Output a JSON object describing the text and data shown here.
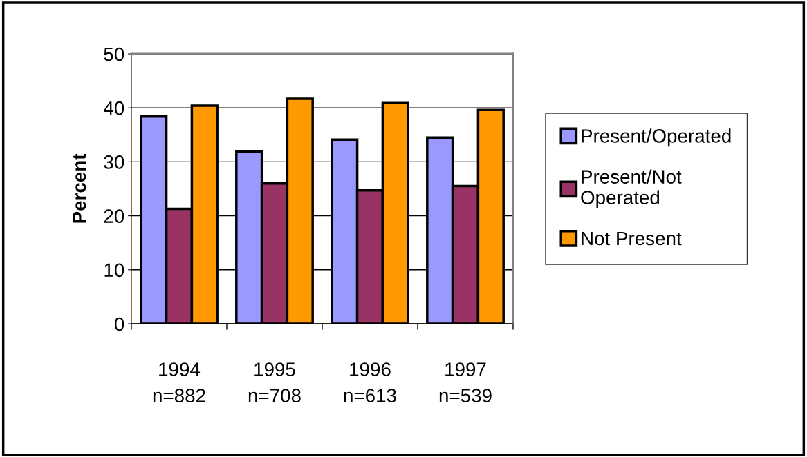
{
  "chart_data": {
    "type": "bar",
    "ylabel": "Percent",
    "categories": [
      "1994\nn=882",
      "1995\nn=708",
      "1996\nn=613",
      "1997\nn=539"
    ],
    "series": [
      {
        "name": "Present/Operated",
        "color": "#9999ff",
        "values": [
          38.4,
          31.9,
          34.1,
          34.5
        ]
      },
      {
        "name": "Present/Not\nOperated",
        "color": "#993366",
        "values": [
          21.3,
          26.0,
          24.7,
          25.5
        ]
      },
      {
        "name": "Not Present",
        "color": "#ff9900",
        "values": [
          40.4,
          41.7,
          40.9,
          39.6
        ]
      }
    ],
    "ylim": [
      0,
      50
    ],
    "yticks": [
      0,
      10,
      20,
      30,
      40,
      50
    ],
    "grid": "y",
    "legend": "right"
  }
}
